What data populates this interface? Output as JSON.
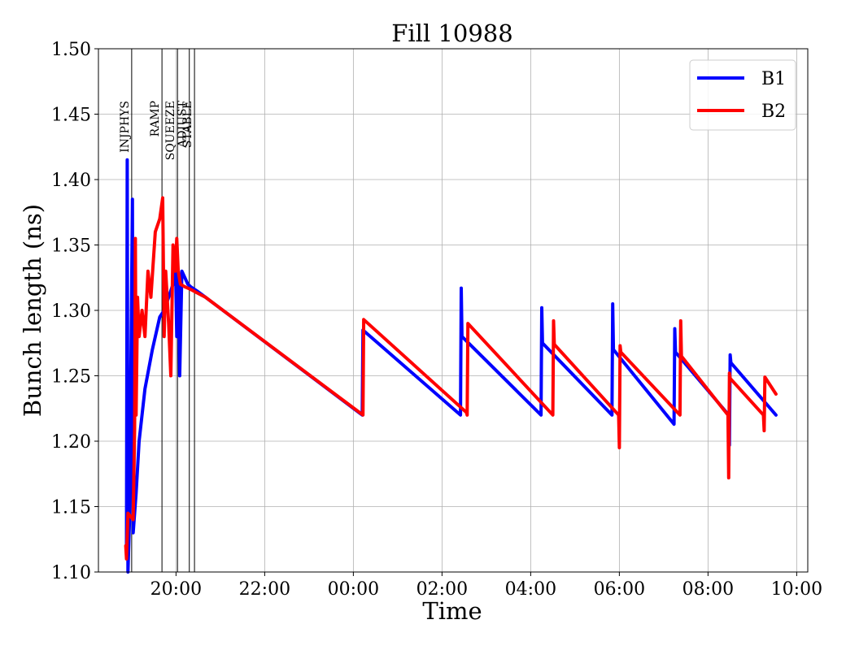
{
  "chart_data": {
    "type": "line",
    "title": "Fill 10988",
    "xlabel": "Time",
    "ylabel": "Bunch length (ns)",
    "ylim": [
      1.1,
      1.5
    ],
    "xlim": [
      "18:15",
      "10:15 (+1d)"
    ],
    "yticks": [
      "1.10",
      "1.15",
      "1.20",
      "1.25",
      "1.30",
      "1.35",
      "1.40",
      "1.45",
      "1.50"
    ],
    "xticks": [
      {
        "t": "20:00",
        "label": "20:00"
      },
      {
        "t": "22:00",
        "label": "22:00"
      },
      {
        "t": "00:00 (+1d)",
        "label": "00:00"
      },
      {
        "t": "02:00 (+1d)",
        "label": "02:00"
      },
      {
        "t": "04:00 (+1d)",
        "label": "04:00"
      },
      {
        "t": "06:00 (+1d)",
        "label": "06:00"
      },
      {
        "t": "08:00 (+1d)",
        "label": "08:00"
      },
      {
        "t": "10:00 (+1d)",
        "label": "10:00"
      }
    ],
    "grid": true,
    "legend_position": "top-right",
    "phases": [
      {
        "label": "INJPHYS",
        "t": "19:00"
      },
      {
        "label": "RAMP",
        "t": "19:41"
      },
      {
        "label": "SQUEEZE",
        "t": "20:02"
      },
      {
        "label": "ADJUST",
        "t": "20:18"
      },
      {
        "label": "STABLE",
        "t": "20:25"
      }
    ],
    "series": [
      {
        "name": "B1",
        "color": "#0000ff",
        "points": [
          [
            "18:53",
            1.12
          ],
          [
            "18:54",
            1.415
          ],
          [
            "18:55",
            1.1
          ],
          [
            "18:57",
            1.14
          ],
          [
            "19:01",
            1.385
          ],
          [
            "19:02",
            1.13
          ],
          [
            "19:06",
            1.16
          ],
          [
            "19:10",
            1.2
          ],
          [
            "19:18",
            1.24
          ],
          [
            "19:28",
            1.27
          ],
          [
            "19:38",
            1.295
          ],
          [
            "19:44",
            1.3
          ],
          [
            "19:50",
            1.31
          ],
          [
            "19:56",
            1.32
          ],
          [
            "19:59",
            1.345
          ],
          [
            "20:01",
            1.28
          ],
          [
            "20:03",
            1.33
          ],
          [
            "20:05",
            1.25
          ],
          [
            "20:08",
            1.33
          ],
          [
            "20:12",
            1.325
          ],
          [
            "20:16",
            1.32
          ],
          [
            "20:20",
            1.318
          ],
          [
            "20:28",
            1.315
          ],
          [
            "20:40",
            1.31
          ],
          [
            "00:12 (+1d)",
            1.22
          ],
          [
            "00:13 (+1d)",
            1.285
          ],
          [
            "02:25 (+1d)",
            1.22
          ],
          [
            "02:26 (+1d)",
            1.317
          ],
          [
            "02:27 (+1d)",
            1.28
          ],
          [
            "04:14 (+1d)",
            1.22
          ],
          [
            "04:15 (+1d)",
            1.302
          ],
          [
            "04:16 (+1d)",
            1.275
          ],
          [
            "05:50 (+1d)",
            1.22
          ],
          [
            "05:51 (+1d)",
            1.305
          ],
          [
            "05:52 (+1d)",
            1.27
          ],
          [
            "07:14 (+1d)",
            1.213
          ],
          [
            "07:15 (+1d)",
            1.286
          ],
          [
            "07:16 (+1d)",
            1.268
          ],
          [
            "08:28 (+1d)",
            1.22
          ],
          [
            "08:29 (+1d)",
            1.197
          ],
          [
            "08:30 (+1d)",
            1.266
          ],
          [
            "08:31 (+1d)",
            1.26
          ],
          [
            "09:32 (+1d)",
            1.22
          ]
        ]
      },
      {
        "name": "B2",
        "color": "#ff0000",
        "points": [
          [
            "18:52",
            1.12
          ],
          [
            "18:53",
            1.11
          ],
          [
            "18:55",
            1.145
          ],
          [
            "19:02",
            1.14
          ],
          [
            "19:04",
            1.21
          ],
          [
            "19:05",
            1.355
          ],
          [
            "19:06",
            1.22
          ],
          [
            "19:08",
            1.31
          ],
          [
            "19:10",
            1.28
          ],
          [
            "19:14",
            1.3
          ],
          [
            "19:18",
            1.28
          ],
          [
            "19:22",
            1.33
          ],
          [
            "19:26",
            1.31
          ],
          [
            "19:32",
            1.36
          ],
          [
            "19:38",
            1.37
          ],
          [
            "19:42",
            1.386
          ],
          [
            "19:44",
            1.28
          ],
          [
            "19:46",
            1.33
          ],
          [
            "19:50",
            1.29
          ],
          [
            "19:53",
            1.25
          ],
          [
            "19:56",
            1.35
          ],
          [
            "19:59",
            1.33
          ],
          [
            "20:01",
            1.355
          ],
          [
            "20:03",
            1.33
          ],
          [
            "20:06",
            1.32
          ],
          [
            "20:12",
            1.318
          ],
          [
            "20:20",
            1.316
          ],
          [
            "20:30",
            1.313
          ],
          [
            "20:40",
            1.31
          ],
          [
            "00:13 (+1d)",
            1.22
          ],
          [
            "00:14 (+1d)",
            1.293
          ],
          [
            "02:33 (+1d)",
            1.222
          ],
          [
            "02:34 (+1d)",
            1.22
          ],
          [
            "02:35 (+1d)",
            1.29
          ],
          [
            "04:30 (+1d)",
            1.22
          ],
          [
            "04:31 (+1d)",
            1.292
          ],
          [
            "04:32 (+1d)",
            1.274
          ],
          [
            "05:59 (+1d)",
            1.22
          ],
          [
            "06:00 (+1d)",
            1.195
          ],
          [
            "06:01 (+1d)",
            1.273
          ],
          [
            "06:02 (+1d)",
            1.268
          ],
          [
            "07:22 (+1d)",
            1.22
          ],
          [
            "07:23 (+1d)",
            1.292
          ],
          [
            "07:24 (+1d)",
            1.265
          ],
          [
            "08:27 (+1d)",
            1.22
          ],
          [
            "08:28 (+1d)",
            1.172
          ],
          [
            "08:29 (+1d)",
            1.252
          ],
          [
            "08:30 (+1d)",
            1.248
          ],
          [
            "09:15 (+1d)",
            1.22
          ],
          [
            "09:16 (+1d)",
            1.208
          ],
          [
            "09:17 (+1d)",
            1.249
          ],
          [
            "09:32 (+1d)",
            1.236
          ]
        ]
      }
    ]
  }
}
